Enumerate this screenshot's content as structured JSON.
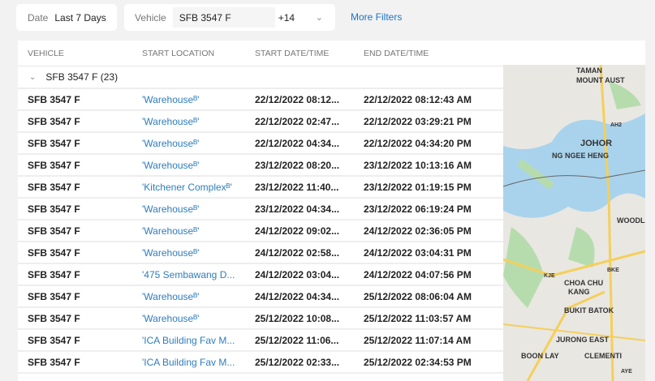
{
  "filters": {
    "date_label": "Date",
    "date_value": "Last 7 Days",
    "vehicle_label": "Vehicle",
    "vehicle_value": "SFB 3547 F",
    "vehicle_more": "+14",
    "more_filters": "More Filters"
  },
  "table": {
    "columns": [
      "VEHICLE",
      "START LOCATION",
      "START DATE/TIME",
      "END DATE/TIME"
    ],
    "group": "SFB 3547 F (23)",
    "rows": [
      [
        "SFB 3547 F",
        "'Warehouseᴮ'",
        "22/12/2022 08:12...",
        "22/12/2022 08:12:43 AM"
      ],
      [
        "SFB 3547 F",
        "'Warehouseᴮ'",
        "22/12/2022 02:47...",
        "22/12/2022 03:29:21 PM"
      ],
      [
        "SFB 3547 F",
        "'Warehouseᴮ'",
        "22/12/2022 04:34...",
        "22/12/2022 04:34:20 PM"
      ],
      [
        "SFB 3547 F",
        "'Warehouseᴮ'",
        "23/12/2022 08:20...",
        "23/12/2022 10:13:16 AM"
      ],
      [
        "SFB 3547 F",
        "'Kitchener Complexᴮ'",
        "23/12/2022 11:40...",
        "23/12/2022 01:19:15 PM"
      ],
      [
        "SFB 3547 F",
        "'Warehouseᴮ'",
        "23/12/2022 04:34...",
        "23/12/2022 06:19:24 PM"
      ],
      [
        "SFB 3547 F",
        "'Warehouseᴮ'",
        "24/12/2022 09:02...",
        "24/12/2022 02:36:05 PM"
      ],
      [
        "SFB 3547 F",
        "'Warehouseᴮ'",
        "24/12/2022 02:58...",
        "24/12/2022 03:04:31 PM"
      ],
      [
        "SFB 3547 F",
        "'475 Sembawang D...",
        "24/12/2022 03:04...",
        "24/12/2022 04:07:56 PM"
      ],
      [
        "SFB 3547 F",
        "'Warehouseᴮ'",
        "24/12/2022 04:34...",
        "25/12/2022 08:06:04 AM"
      ],
      [
        "SFB 3547 F",
        "'Warehouseᴮ'",
        "25/12/2022 10:08...",
        "25/12/2022 11:03:57 AM"
      ],
      [
        "SFB 3547 F",
        "'ICA Building Fav M...",
        "25/12/2022 11:06...",
        "25/12/2022 11:07:14 AM"
      ],
      [
        "SFB 3547 F",
        "'ICA Building Fav M...",
        "25/12/2022 02:33...",
        "25/12/2022 02:34:53 PM"
      ]
    ]
  },
  "map": {
    "labels": [
      "TAMAN",
      "MOUNT AUST",
      "AH2",
      "JOHOR",
      "NG NGEE HENG",
      "WOODLAN",
      "CHOA CHU",
      "KANG",
      "BUKIT BATOK",
      "JURONG EAST",
      "BOON LAY",
      "CLEMENTI",
      "BKE",
      "KJE",
      "AYE"
    ]
  }
}
